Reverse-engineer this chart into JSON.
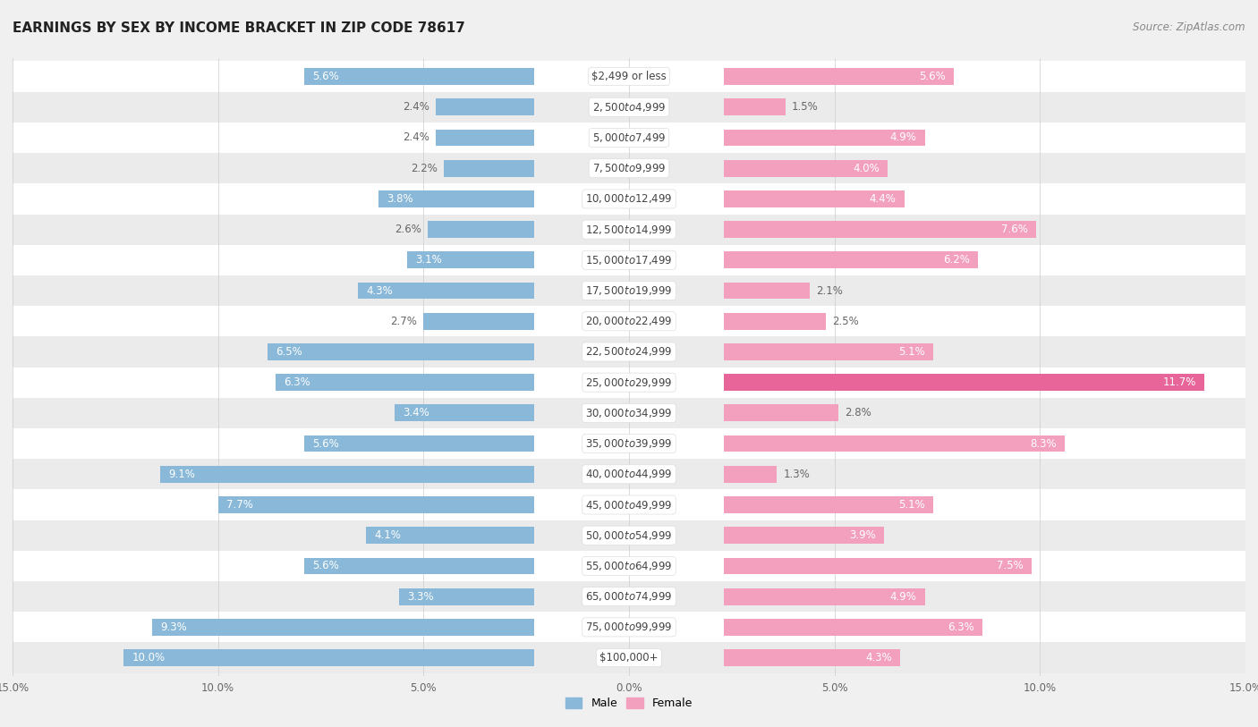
{
  "title": "EARNINGS BY SEX BY INCOME BRACKET IN ZIP CODE 78617",
  "source": "Source: ZipAtlas.com",
  "categories": [
    "$2,499 or less",
    "$2,500 to $4,999",
    "$5,000 to $7,499",
    "$7,500 to $9,999",
    "$10,000 to $12,499",
    "$12,500 to $14,999",
    "$15,000 to $17,499",
    "$17,500 to $19,999",
    "$20,000 to $22,499",
    "$22,500 to $24,999",
    "$25,000 to $29,999",
    "$30,000 to $34,999",
    "$35,000 to $39,999",
    "$40,000 to $44,999",
    "$45,000 to $49,999",
    "$50,000 to $54,999",
    "$55,000 to $64,999",
    "$65,000 to $74,999",
    "$75,000 to $99,999",
    "$100,000+"
  ],
  "male_values": [
    5.6,
    2.4,
    2.4,
    2.2,
    3.8,
    2.6,
    3.1,
    4.3,
    2.7,
    6.5,
    6.3,
    3.4,
    5.6,
    9.1,
    7.7,
    4.1,
    5.6,
    3.3,
    9.3,
    10.0
  ],
  "female_values": [
    5.6,
    1.5,
    4.9,
    4.0,
    4.4,
    7.6,
    6.2,
    2.1,
    2.5,
    5.1,
    11.7,
    2.8,
    8.3,
    1.3,
    5.1,
    3.9,
    7.5,
    4.9,
    6.3,
    4.3
  ],
  "male_color": "#89b8d8",
  "female_color": "#f2a0be",
  "female_color_hot": "#e8659a",
  "male_color_inside_label": "#ffffff",
  "female_color_inside_label": "#ffffff",
  "outside_label_color": "#666666",
  "bg_color": "#f0f0f0",
  "row_white": "#ffffff",
  "row_gray": "#ebebeb",
  "xlim": 15.0,
  "bar_height": 0.55,
  "title_fontsize": 11,
  "label_fontsize": 8.5,
  "tick_fontsize": 8.5,
  "source_fontsize": 8.5,
  "cat_fontsize": 8.5,
  "inside_label_threshold_male": 3.0,
  "inside_label_threshold_female": 3.0,
  "hot_female_rows": [
    10
  ]
}
